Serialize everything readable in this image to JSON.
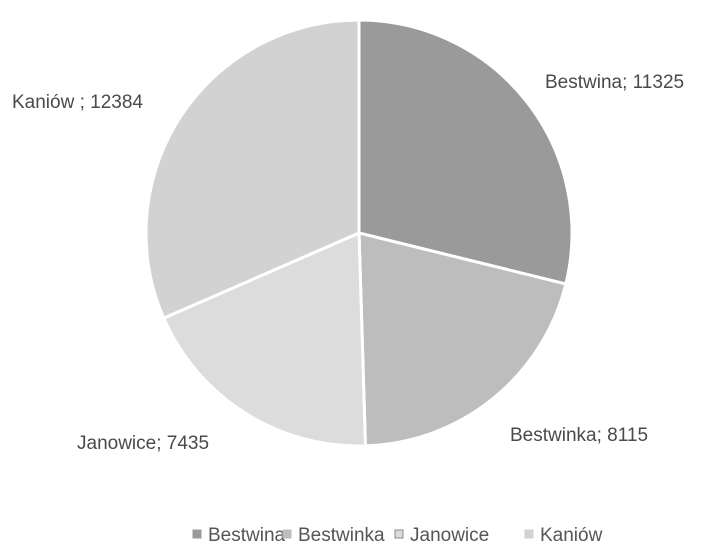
{
  "chart_data": {
    "type": "pie",
    "categories": [
      "Bestwina",
      "Bestwinka",
      "Janowice",
      "Kaniów"
    ],
    "values": [
      11325,
      8115,
      7435,
      12384
    ],
    "data_labels": [
      "Bestwina; 11325",
      "Bestwinka; 8115",
      "Janowice; 7435",
      "Kaniów ; 12384"
    ],
    "colors": [
      "#9a9a9a",
      "#bdbdbd",
      "#dcdcdc",
      "#d2d2d2"
    ],
    "legend": {
      "position": "bottom",
      "entries": [
        "Bestwina",
        "Bestwinka",
        "Janowice",
        "Kaniów"
      ]
    },
    "start_angle": "12 o'clock",
    "direction": "clockwise"
  }
}
